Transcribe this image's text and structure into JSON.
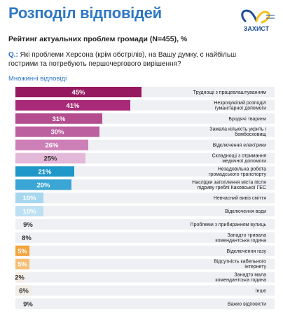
{
  "header": {
    "title": "Розподіл відповідей",
    "logo_text": "ЗАХИСТ"
  },
  "subtitle": "Рейтинг актуальних проблем громади (N=455), %",
  "question": {
    "prefix": "Q.:",
    "text": "Які проблеми Херсона (крім обстрілів), на Вашу думку, є найбільш гострими та потребують першочергового вирішення?"
  },
  "answer_type": "Множинні відповіді",
  "chart_data": {
    "type": "bar",
    "orientation": "horizontal",
    "title": "",
    "xlim": [
      0,
      45
    ],
    "categories": [
      "Труднощі з працевлаштуванням",
      "Незрозумілий розподіл гуманітарної допомоги",
      "Бродячі тварини",
      "Замала кількість укрить і бомбосховищ",
      "Відключення електрики",
      "Складнощі з отримання медичної допомоги",
      "Незадовільна робота громадського транспорту",
      "Наслідки затоплення міста після підриву греблі Каховської ГЕС",
      "Невчасний вивіз сміття",
      "Відключення води",
      "Проблеми з прибиранням вулиць",
      "Занадто тривала комендантська година",
      "Відключення газу",
      "Відсутність кабельного інтернету",
      "Занадто мала комендантська година",
      "Інше",
      "Важко відповісти"
    ],
    "values": [
      45,
      41,
      31,
      30,
      26,
      25,
      21,
      20,
      10,
      10,
      9,
      8,
      5,
      5,
      2,
      6,
      9
    ],
    "labels": [
      "45%",
      "41%",
      "31%",
      "30%",
      "26%",
      "25%",
      "21%",
      "20%",
      "10%",
      "10%",
      "9%",
      "8%",
      "5%",
      "5%",
      "2%",
      "6%",
      "9%"
    ],
    "colors": [
      "#96185e",
      "#a82a78",
      "#b44d90",
      "#bd60a0",
      "#cd7fb7",
      "#e3b8d8",
      "#1f97c8",
      "#3aa6d5",
      "#a7d7ef",
      "#bde0f3",
      "#eef0f4",
      "#eef0f4",
      "#f2a33a",
      "#f6be72",
      "#f6ece1",
      "#f0ece6",
      "#eef0f4"
    ],
    "label_colors": [
      "#ffffff",
      "#ffffff",
      "#ffffff",
      "#ffffff",
      "#ffffff",
      "#333333",
      "#ffffff",
      "#ffffff",
      "#ffffff",
      "#ffffff",
      "#333333",
      "#333333",
      "#ffffff",
      "#ffffff",
      "#333333",
      "#333333",
      "#333333"
    ],
    "row_background": "#eef0f4"
  }
}
